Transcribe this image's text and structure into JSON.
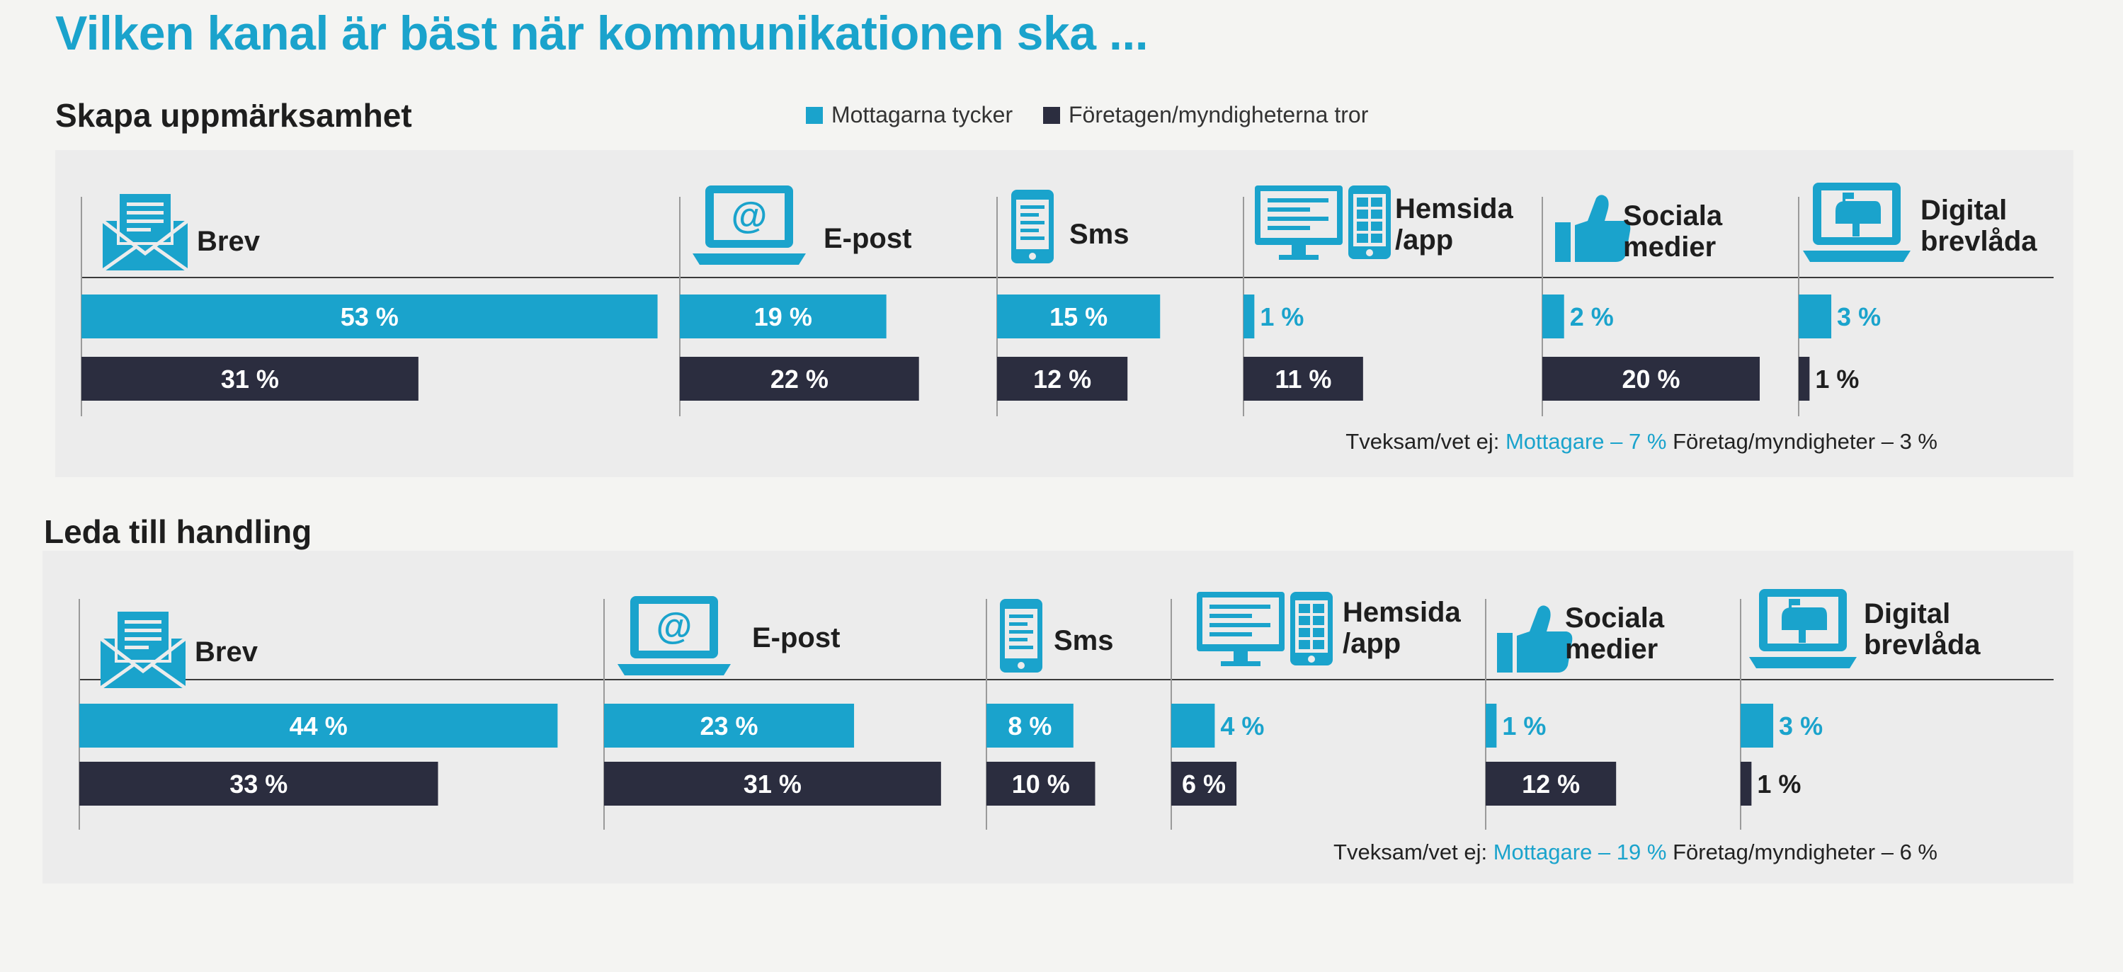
{
  "page": {
    "title": "Vilken kanal är bäst när kommunikationen ska ..."
  },
  "legend": {
    "items": [
      {
        "label": "Mottagarna tycker",
        "color": "#1aa3cc"
      },
      {
        "label": "Företagen/myndigheterna tror",
        "color": "#2b2d3f"
      }
    ]
  },
  "colors": {
    "accent": "#1aa3cc",
    "dark": "#2b2d3f"
  },
  "chart_data": [
    {
      "type": "bar",
      "title": "Skapa uppmärksamhet",
      "categories": [
        "Brev",
        "E-post",
        "Sms",
        "Hemsida /app",
        "Sociala medier",
        "Digital brevlåda"
      ],
      "icons": [
        "envelope-icon",
        "laptop-email-icon",
        "phone-icon",
        "desktop-tablet-icon",
        "thumbs-up-icon",
        "laptop-mailbox-icon"
      ],
      "series": [
        {
          "name": "Mottagarna tycker",
          "values": [
            53,
            19,
            15,
            1,
            2,
            3
          ],
          "labels": [
            "53 %",
            "19 %",
            "15 %",
            "1 %",
            "2 %",
            "3 %"
          ]
        },
        {
          "name": "Företagen/myndigheterna tror",
          "values": [
            31,
            22,
            12,
            11,
            20,
            1
          ],
          "labels": [
            "31 %",
            "22 %",
            "12 %",
            "11 %",
            "20 %",
            "1 %"
          ]
        }
      ],
      "note": {
        "prefix": "Tveksam/vet ej:",
        "receivers": "Mottagare – 7 %",
        "companies": "Företag/myndigheter – 3 %"
      }
    },
    {
      "type": "bar",
      "title": "Leda till handling",
      "categories": [
        "Brev",
        "E-post",
        "Sms",
        "Hemsida /app",
        "Sociala medier",
        "Digital brevlåda"
      ],
      "icons": [
        "envelope-icon",
        "laptop-email-icon",
        "phone-icon",
        "desktop-tablet-icon",
        "thumbs-up-icon",
        "laptop-mailbox-icon"
      ],
      "series": [
        {
          "name": "Mottagarna tycker",
          "values": [
            44,
            23,
            8,
            4,
            1,
            3
          ],
          "labels": [
            "44 %",
            "23 %",
            "8 %",
            "4 %",
            "1 %",
            "3 %"
          ]
        },
        {
          "name": "Företagen/myndigheterna tror",
          "values": [
            33,
            31,
            10,
            6,
            12,
            1
          ],
          "labels": [
            "33 %",
            "31 %",
            "10 %",
            "6 %",
            "12 %",
            "1 %"
          ]
        }
      ],
      "note": {
        "prefix": "Tveksam/vet ej:",
        "receivers": "Mottagare – 19 %",
        "companies": "Företag/myndigheter – 6 %"
      }
    }
  ]
}
